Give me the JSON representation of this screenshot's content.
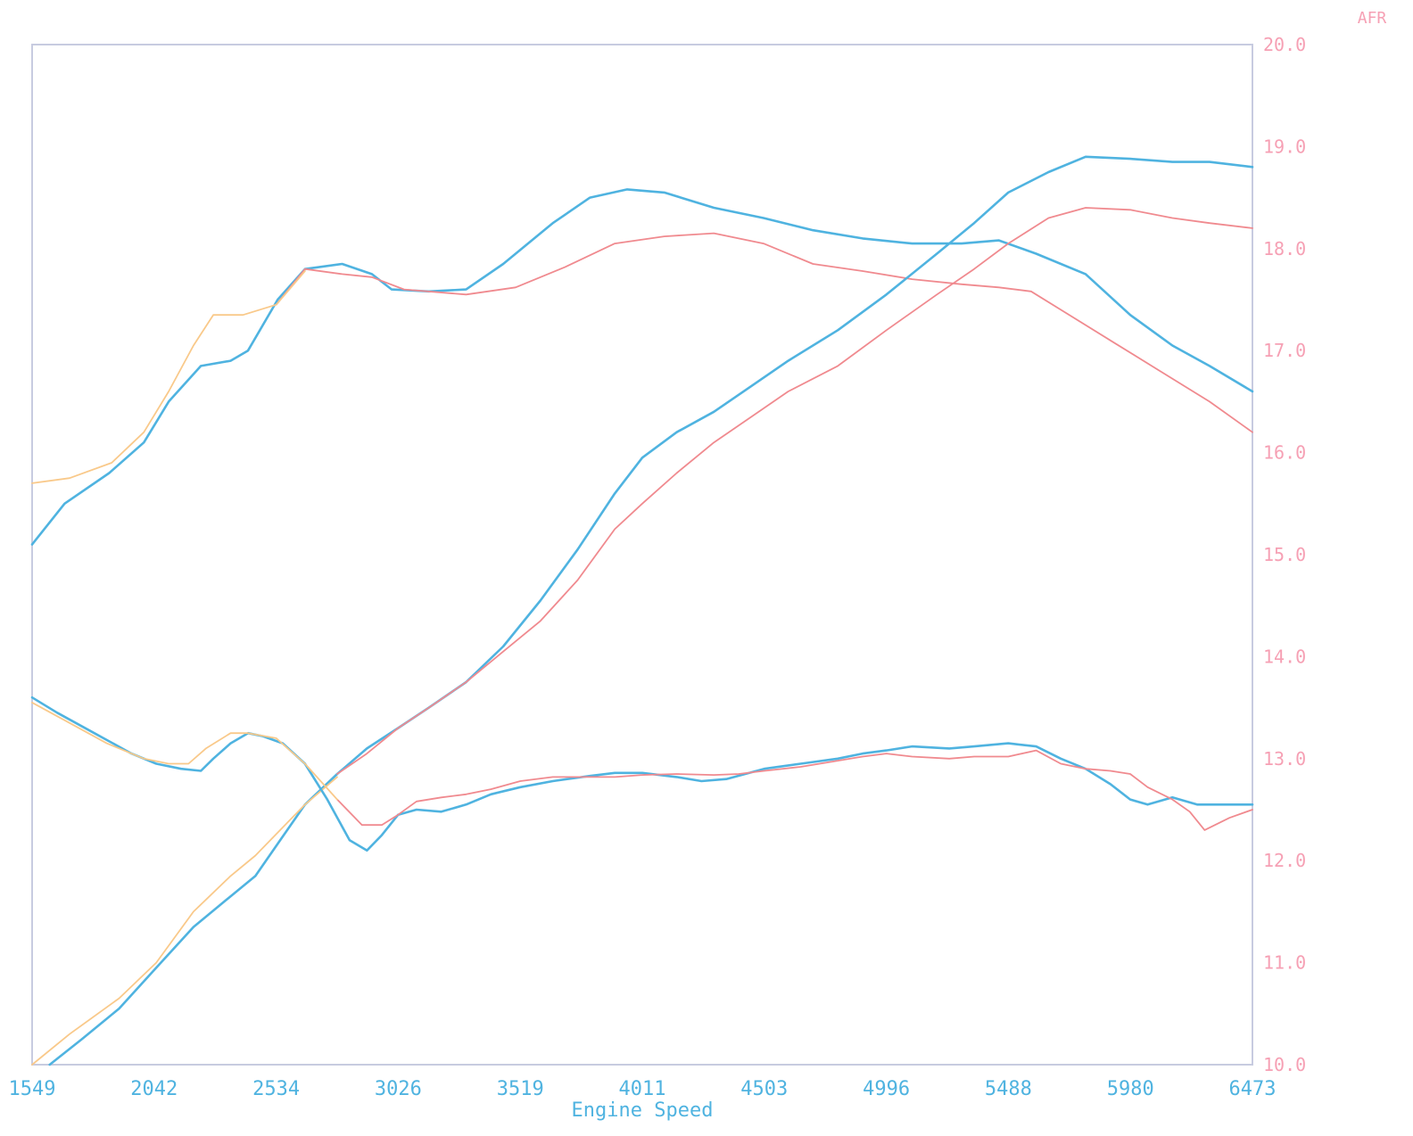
{
  "chart_data": {
    "type": "line",
    "xlabel": "Engine Speed",
    "ylabel": "AFR",
    "xlim": [
      1549,
      6473
    ],
    "ylim": [
      10.0,
      20.0
    ],
    "x_ticks": [
      "1549",
      "2042",
      "2534",
      "3026",
      "3519",
      "4011",
      "4503",
      "4996",
      "5488",
      "5980",
      "6473"
    ],
    "y_ticks": [
      "10.0",
      "11.0",
      "12.0",
      "13.0",
      "14.0",
      "15.0",
      "16.0",
      "17.0",
      "18.0",
      "19.0",
      "20.0"
    ],
    "colors": {
      "blue": "#4fb3e0",
      "red": "#f08a8f",
      "orange": "#f9c98a",
      "axis_right": "#f6a0b4",
      "frame": "#c7cbe0"
    },
    "series": [
      {
        "color": "#4fb3e0",
        "points": [
          [
            1549,
            15.1
          ],
          [
            1680,
            15.5
          ],
          [
            1860,
            15.8
          ],
          [
            2000,
            16.1
          ],
          [
            2100,
            16.5
          ],
          [
            2230,
            16.85
          ],
          [
            2350,
            16.9
          ],
          [
            2420,
            17.0
          ],
          [
            2540,
            17.5
          ],
          [
            2650,
            17.8
          ],
          [
            2800,
            17.85
          ],
          [
            2920,
            17.75
          ],
          [
            3000,
            17.6
          ],
          [
            3150,
            17.58
          ],
          [
            3300,
            17.6
          ],
          [
            3450,
            17.85
          ],
          [
            3650,
            18.25
          ],
          [
            3800,
            18.5
          ],
          [
            3950,
            18.58
          ],
          [
            4100,
            18.55
          ],
          [
            4300,
            18.4
          ],
          [
            4500,
            18.3
          ],
          [
            4700,
            18.18
          ],
          [
            4900,
            18.1
          ],
          [
            5100,
            18.05
          ],
          [
            5300,
            18.05
          ],
          [
            5450,
            18.08
          ],
          [
            5600,
            17.95
          ],
          [
            5800,
            17.75
          ],
          [
            5980,
            17.35
          ],
          [
            6150,
            17.05
          ],
          [
            6300,
            16.85
          ],
          [
            6473,
            16.6
          ]
        ]
      },
      {
        "color": "#f08a8f",
        "points": [
          [
            2534,
            17.45
          ],
          [
            2650,
            17.8
          ],
          [
            2800,
            17.75
          ],
          [
            2920,
            17.72
          ],
          [
            3050,
            17.6
          ],
          [
            3300,
            17.55
          ],
          [
            3500,
            17.62
          ],
          [
            3700,
            17.82
          ],
          [
            3900,
            18.05
          ],
          [
            4100,
            18.12
          ],
          [
            4300,
            18.15
          ],
          [
            4500,
            18.05
          ],
          [
            4700,
            17.85
          ],
          [
            4900,
            17.78
          ],
          [
            5100,
            17.7
          ],
          [
            5300,
            17.65
          ],
          [
            5450,
            17.62
          ],
          [
            5580,
            17.58
          ],
          [
            5700,
            17.4
          ],
          [
            5900,
            17.1
          ],
          [
            6100,
            16.8
          ],
          [
            6300,
            16.5
          ],
          [
            6473,
            16.2
          ]
        ]
      },
      {
        "color": "#f9c98a",
        "points": [
          [
            1549,
            15.7
          ],
          [
            1700,
            15.75
          ],
          [
            1870,
            15.9
          ],
          [
            2000,
            16.2
          ],
          [
            2100,
            16.6
          ],
          [
            2200,
            17.05
          ],
          [
            2280,
            17.35
          ],
          [
            2400,
            17.35
          ],
          [
            2534,
            17.45
          ],
          [
            2650,
            17.78
          ]
        ]
      },
      {
        "color": "#4fb3e0",
        "points": [
          [
            1620,
            10.0
          ],
          [
            1750,
            10.25
          ],
          [
            1900,
            10.55
          ],
          [
            2050,
            10.95
          ],
          [
            2200,
            11.35
          ],
          [
            2350,
            11.65
          ],
          [
            2450,
            11.85
          ],
          [
            2550,
            12.2
          ],
          [
            2650,
            12.55
          ],
          [
            2780,
            12.85
          ],
          [
            2900,
            13.1
          ],
          [
            3026,
            13.3
          ],
          [
            3150,
            13.5
          ],
          [
            3300,
            13.75
          ],
          [
            3450,
            14.1
          ],
          [
            3600,
            14.55
          ],
          [
            3750,
            15.05
          ],
          [
            3900,
            15.6
          ],
          [
            4011,
            15.95
          ],
          [
            4150,
            16.2
          ],
          [
            4300,
            16.4
          ],
          [
            4450,
            16.65
          ],
          [
            4600,
            16.9
          ],
          [
            4800,
            17.2
          ],
          [
            4996,
            17.55
          ],
          [
            5200,
            17.95
          ],
          [
            5350,
            18.25
          ],
          [
            5488,
            18.55
          ],
          [
            5650,
            18.75
          ],
          [
            5800,
            18.9
          ],
          [
            5980,
            18.88
          ],
          [
            6150,
            18.85
          ],
          [
            6300,
            18.85
          ],
          [
            6473,
            18.8
          ]
        ]
      },
      {
        "color": "#f08a8f",
        "points": [
          [
            2780,
            12.85
          ],
          [
            2900,
            13.05
          ],
          [
            3026,
            13.3
          ],
          [
            3150,
            13.5
          ],
          [
            3300,
            13.75
          ],
          [
            3450,
            14.05
          ],
          [
            3600,
            14.35
          ],
          [
            3750,
            14.75
          ],
          [
            3900,
            15.25
          ],
          [
            4011,
            15.5
          ],
          [
            4150,
            15.8
          ],
          [
            4300,
            16.1
          ],
          [
            4450,
            16.35
          ],
          [
            4600,
            16.6
          ],
          [
            4800,
            16.85
          ],
          [
            4996,
            17.2
          ],
          [
            5200,
            17.55
          ],
          [
            5350,
            17.8
          ],
          [
            5488,
            18.05
          ],
          [
            5650,
            18.3
          ],
          [
            5800,
            18.4
          ],
          [
            5980,
            18.38
          ],
          [
            6150,
            18.3
          ],
          [
            6300,
            18.25
          ],
          [
            6473,
            18.2
          ]
        ]
      },
      {
        "color": "#f9c98a",
        "points": [
          [
            1549,
            10.0
          ],
          [
            1700,
            10.3
          ],
          [
            1900,
            10.65
          ],
          [
            2050,
            11.0
          ],
          [
            2200,
            11.5
          ],
          [
            2350,
            11.85
          ],
          [
            2450,
            12.05
          ],
          [
            2550,
            12.3
          ],
          [
            2650,
            12.55
          ],
          [
            2780,
            12.82
          ]
        ]
      },
      {
        "color": "#4fb3e0",
        "points": [
          [
            1549,
            13.6
          ],
          [
            1650,
            13.45
          ],
          [
            1800,
            13.25
          ],
          [
            1950,
            13.05
          ],
          [
            2050,
            12.95
          ],
          [
            2150,
            12.9
          ],
          [
            2230,
            12.88
          ],
          [
            2280,
            13.0
          ],
          [
            2350,
            13.15
          ],
          [
            2420,
            13.25
          ],
          [
            2480,
            13.22
          ],
          [
            2560,
            13.15
          ],
          [
            2650,
            12.95
          ],
          [
            2740,
            12.6
          ],
          [
            2830,
            12.2
          ],
          [
            2900,
            12.1
          ],
          [
            2960,
            12.25
          ],
          [
            3026,
            12.45
          ],
          [
            3100,
            12.5
          ],
          [
            3200,
            12.48
          ],
          [
            3300,
            12.55
          ],
          [
            3400,
            12.65
          ],
          [
            3519,
            12.72
          ],
          [
            3650,
            12.78
          ],
          [
            3800,
            12.83
          ],
          [
            3900,
            12.86
          ],
          [
            4011,
            12.86
          ],
          [
            4150,
            12.82
          ],
          [
            4250,
            12.78
          ],
          [
            4350,
            12.8
          ],
          [
            4503,
            12.9
          ],
          [
            4650,
            12.95
          ],
          [
            4800,
            13.0
          ],
          [
            4900,
            13.05
          ],
          [
            4996,
            13.08
          ],
          [
            5100,
            13.12
          ],
          [
            5250,
            13.1
          ],
          [
            5350,
            13.12
          ],
          [
            5488,
            13.15
          ],
          [
            5600,
            13.12
          ],
          [
            5700,
            13.0
          ],
          [
            5800,
            12.9
          ],
          [
            5900,
            12.75
          ],
          [
            5980,
            12.6
          ],
          [
            6050,
            12.55
          ],
          [
            6150,
            12.62
          ],
          [
            6250,
            12.55
          ],
          [
            6350,
            12.55
          ],
          [
            6473,
            12.55
          ]
        ]
      },
      {
        "color": "#f08a8f",
        "points": [
          [
            2780,
            12.6
          ],
          [
            2880,
            12.35
          ],
          [
            2960,
            12.35
          ],
          [
            3026,
            12.45
          ],
          [
            3100,
            12.58
          ],
          [
            3200,
            12.62
          ],
          [
            3300,
            12.65
          ],
          [
            3400,
            12.7
          ],
          [
            3519,
            12.78
          ],
          [
            3650,
            12.82
          ],
          [
            3800,
            12.82
          ],
          [
            3900,
            12.82
          ],
          [
            4011,
            12.84
          ],
          [
            4150,
            12.85
          ],
          [
            4300,
            12.84
          ],
          [
            4400,
            12.85
          ],
          [
            4503,
            12.88
          ],
          [
            4650,
            12.92
          ],
          [
            4800,
            12.98
          ],
          [
            4900,
            13.02
          ],
          [
            4996,
            13.05
          ],
          [
            5100,
            13.02
          ],
          [
            5250,
            13.0
          ],
          [
            5350,
            13.02
          ],
          [
            5488,
            13.02
          ],
          [
            5600,
            13.08
          ],
          [
            5700,
            12.95
          ],
          [
            5800,
            12.9
          ],
          [
            5900,
            12.88
          ],
          [
            5980,
            12.85
          ],
          [
            6050,
            12.72
          ],
          [
            6150,
            12.6
          ],
          [
            6220,
            12.48
          ],
          [
            6280,
            12.3
          ],
          [
            6380,
            12.42
          ],
          [
            6473,
            12.5
          ]
        ]
      },
      {
        "color": "#f9c98a",
        "points": [
          [
            1549,
            13.55
          ],
          [
            1700,
            13.35
          ],
          [
            1850,
            13.15
          ],
          [
            2000,
            13.0
          ],
          [
            2100,
            12.95
          ],
          [
            2180,
            12.95
          ],
          [
            2250,
            13.1
          ],
          [
            2350,
            13.25
          ],
          [
            2420,
            13.25
          ],
          [
            2534,
            13.2
          ],
          [
            2650,
            12.95
          ],
          [
            2780,
            12.6
          ]
        ]
      }
    ]
  }
}
